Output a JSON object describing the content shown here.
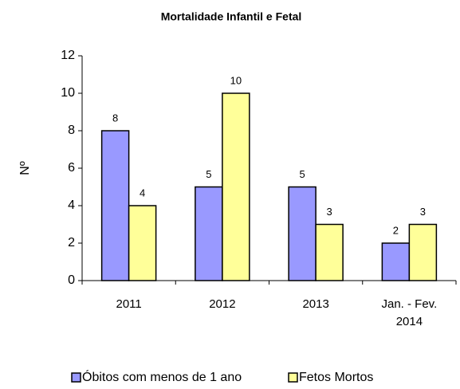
{
  "chart_data": {
    "type": "bar",
    "title": "Mortalidade Infantil e Fetal",
    "y_label": "Nº",
    "categories": [
      "2011",
      "2012",
      "2013",
      "Jan. - Fev. 2014"
    ],
    "series": [
      {
        "name": "Óbitos com menos de 1 ano",
        "color": "#9999ff",
        "values": [
          8,
          5,
          5,
          2
        ]
      },
      {
        "name": "Fetos Mortos",
        "color": "#ffff99",
        "values": [
          4,
          10,
          3,
          3
        ]
      }
    ],
    "ylim": [
      0,
      12
    ],
    "yticks": [
      0,
      2,
      4,
      6,
      8,
      10,
      12
    ],
    "grid": false,
    "legend": "bottom"
  }
}
